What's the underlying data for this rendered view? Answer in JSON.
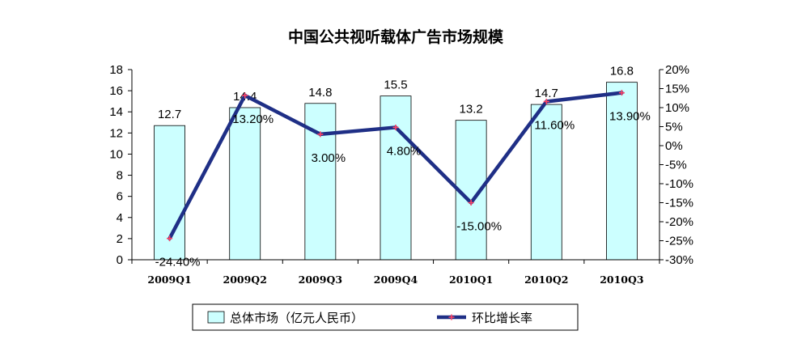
{
  "chart_data": {
    "type": "bar+line",
    "title": "中国公共视听载体广告市场规模",
    "categories": [
      "2009Q1",
      "2009Q2",
      "2009Q3",
      "2009Q4",
      "2010Q1",
      "2010Q2",
      "2010Q3"
    ],
    "series": [
      {
        "name": "总体市场（亿元人民币）",
        "type": "bar",
        "axis": "left",
        "values": [
          12.7,
          14.4,
          14.8,
          15.5,
          13.2,
          14.7,
          16.8
        ],
        "labels": [
          "12.7",
          "14.4",
          "14.8",
          "15.5",
          "13.2",
          "14.7",
          "16.8"
        ],
        "color": "#ccffff"
      },
      {
        "name": "环比增长率",
        "type": "line",
        "axis": "right",
        "values": [
          -24.4,
          13.2,
          3.0,
          4.8,
          -15.0,
          11.6,
          13.9
        ],
        "labels": [
          "-24.40%",
          "13.20%",
          "3.00%",
          "4.80%",
          "-15.00%",
          "11.60%",
          "13.90%"
        ],
        "color": "#1f2f86",
        "marker_color": "#ff4466"
      }
    ],
    "left_axis": {
      "ylim": [
        0,
        18
      ],
      "ticks": [
        "0",
        "2",
        "4",
        "6",
        "8",
        "10",
        "12",
        "14",
        "16",
        "18"
      ]
    },
    "right_axis": {
      "ylim": [
        -30,
        20
      ],
      "ticks": [
        "-30%",
        "-25%",
        "-20%",
        "-15%",
        "-10%",
        "-5%",
        "0%",
        "5%",
        "10%",
        "15%",
        "20%"
      ]
    },
    "legend": "bottom",
    "grid": false
  }
}
